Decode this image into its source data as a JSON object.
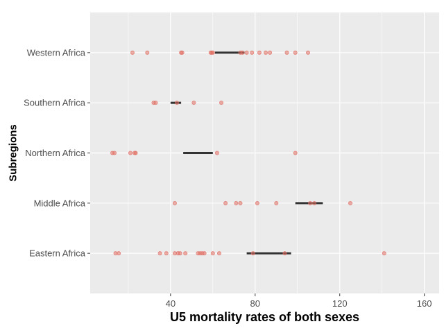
{
  "chart_data": {
    "type": "scatter",
    "xlabel": "U5 mortality rates of both sexes",
    "ylabel": "Subregions",
    "xlim": [
      2,
      167
    ],
    "x_ticks": [
      40,
      80,
      120,
      160
    ],
    "categories": [
      "Eastern Africa",
      "Middle Africa",
      "Northern Africa",
      "Southern Africa",
      "Western Africa"
    ],
    "grid": true,
    "series": [
      {
        "category": "Eastern Africa",
        "points": [
          14,
          15.5,
          35,
          38,
          42,
          43.5,
          44.5,
          47,
          53,
          54,
          55,
          56,
          60,
          63,
          79,
          94,
          141
        ],
        "range": [
          76,
          97
        ]
      },
      {
        "category": "Middle Africa",
        "points": [
          42,
          66,
          71,
          73,
          81,
          90,
          106,
          108,
          125
        ],
        "range": [
          99,
          112
        ]
      },
      {
        "category": "Northern Africa",
        "points": [
          12.5,
          13.5,
          21,
          23,
          23.5,
          62,
          99
        ],
        "range": [
          46,
          60
        ]
      },
      {
        "category": "Southern Africa",
        "points": [
          32,
          33,
          43,
          51,
          64
        ],
        "range": [
          40,
          45
        ]
      },
      {
        "category": "Western Africa",
        "points": [
          22,
          29,
          45,
          45.5,
          59,
          59.5,
          60,
          73,
          74,
          76,
          78.5,
          82,
          85,
          87,
          95,
          99,
          105
        ],
        "range": [
          61,
          75
        ]
      }
    ],
    "colors": {
      "panel": "#ebebeb",
      "grid": "#ffffff",
      "point": "#e06d62",
      "range_bar": "#333333"
    }
  }
}
